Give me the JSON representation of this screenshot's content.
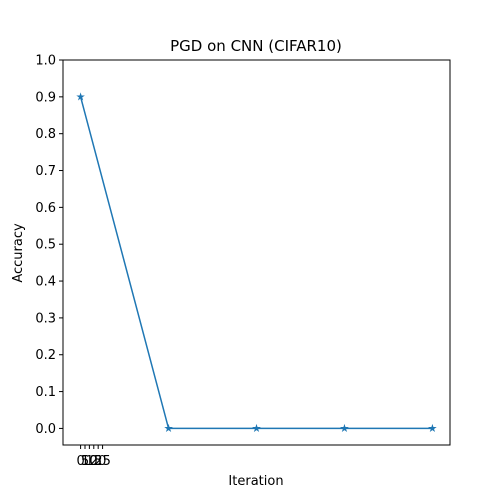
{
  "chart_data": {
    "type": "line",
    "title": "PGD on CNN (CIFAR10)",
    "x_label": "Iteration",
    "y_label": "Accuracy",
    "x": [
      0,
      100,
      200,
      300,
      400
    ],
    "series": [
      {
        "name": "Accuracy",
        "color": "#1f77b4",
        "marker": "star",
        "values": [
          0.9,
          0.0,
          0.0,
          0.0,
          0.0
        ]
      }
    ],
    "xlim": [
      -20,
      420
    ],
    "xticks": [
      0,
      5,
      10,
      15,
      20,
      25
    ],
    "ylim": [
      -0.045,
      1.0
    ],
    "yticks": [
      {
        "value": 0,
        "label": "0.0"
      },
      0.1,
      0.2,
      0.3,
      0.4,
      0.5,
      0.6,
      0.7,
      0.8,
      0.9,
      {
        "value": 1,
        "label": "1.0"
      }
    ],
    "grid": false
  }
}
